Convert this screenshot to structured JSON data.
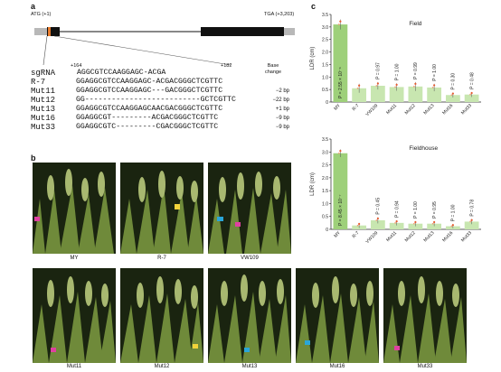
{
  "panel_a": {
    "label": "a",
    "atg": "ATG (+1)",
    "tga": "TGA (+3,203)",
    "pos_left": "+164",
    "pos_right": "+182",
    "base_change_header": "Base change",
    "rows": [
      {
        "name": "sgRNA",
        "seq": "AGGCGTCCAAGGAGC-ACGA",
        "change": ""
      },
      {
        "name": "R-7",
        "seq": "GGAGGCGTCCAAGGAGC-ACGACGGGCTCGTTC",
        "change": ""
      },
      {
        "name": "Mut11",
        "seq": "GGAGGCGTCCAAGGAGC---GACGGGCTCGTTC",
        "change": "−2 bp"
      },
      {
        "name": "Mut12",
        "seq": "GG--------------------------GCTCGTTC",
        "change": "−22 bp"
      },
      {
        "name": "Mut13",
        "seq": "GGAGGCGTCCAAGGAGCAACGACGGGCTCGTTC",
        "change": "+1 bp"
      },
      {
        "name": "Mut16",
        "seq": "GGAGGCGT---------ACGACGGGCTCGTTC",
        "change": "−9 bp"
      },
      {
        "name": "Mut33",
        "seq": "GGAGGCGTC---------CGACGGGCTCGTTC",
        "change": "−9 bp"
      }
    ]
  },
  "panel_b": {
    "label": "b",
    "top_row": [
      "MY",
      "R-7",
      "VW109"
    ],
    "bottom_row": [
      "Mut11",
      "Mut12",
      "Mut13",
      "Mut16",
      "Mut33"
    ]
  },
  "panel_c": {
    "label": "c",
    "chart_data": [
      {
        "type": "bar",
        "title": "Field",
        "ylabel": "LDR (cm)",
        "ylim": [
          0,
          3.5
        ],
        "yticks": [
          0,
          0.5,
          1.0,
          1.5,
          2.0,
          2.5,
          3.0,
          3.5
        ],
        "ytick_labels": [
          "0",
          "0.5",
          "1.0",
          "1.5",
          "2.0",
          "2.5",
          "3.0",
          "3.5"
        ],
        "categories": [
          "MY",
          "R-7",
          "VW109",
          "Mut11",
          "Mut12",
          "Mut13",
          "Mut16",
          "Mut33"
        ],
        "values": [
          3.1,
          0.55,
          0.65,
          0.6,
          0.62,
          0.58,
          0.28,
          0.3
        ],
        "errors": [
          0.2,
          0.18,
          0.15,
          0.15,
          0.18,
          0.15,
          0.1,
          0.1
        ],
        "annotations": [
          "P = 2.55 × 10⁻⁶",
          "",
          "P = 0.97",
          "P = 1.00",
          "P = 0.99",
          "P = 1.00",
          "P = 0.30",
          "P = 0.48"
        ],
        "colors": {
          "bar": "#c8e6b0",
          "highlight": "#9ed07a",
          "point": "#e85a2c"
        }
      },
      {
        "type": "bar",
        "title": "Fieldhouse",
        "ylabel": "LDR (cm)",
        "ylim": [
          0,
          3.5
        ],
        "yticks": [
          0,
          0.5,
          1.0,
          1.5,
          2.0,
          2.5,
          3.0,
          3.5
        ],
        "ytick_labels": [
          "0",
          "0.5",
          "1.0",
          "1.5",
          "2.0",
          "2.5",
          "3.0",
          "3.5"
        ],
        "categories": [
          "MY",
          "R-7",
          "VW109",
          "Mut11",
          "Mut12",
          "Mut13",
          "Mut16",
          "Mut33"
        ],
        "values": [
          2.95,
          0.15,
          0.35,
          0.25,
          0.22,
          0.22,
          0.12,
          0.3
        ],
        "errors": [
          0.15,
          0.1,
          0.12,
          0.1,
          0.1,
          0.1,
          0.08,
          0.1
        ],
        "annotations": [
          "P = 8.45 × 10⁻⁷",
          "",
          "P = 0.45",
          "P = 0.94",
          "P = 1.00",
          "P = 0.95",
          "P = 1.00",
          "P = 0.78"
        ],
        "colors": {
          "bar": "#c8e6b0",
          "highlight": "#9ed07a",
          "point": "#e85a2c"
        }
      }
    ]
  }
}
